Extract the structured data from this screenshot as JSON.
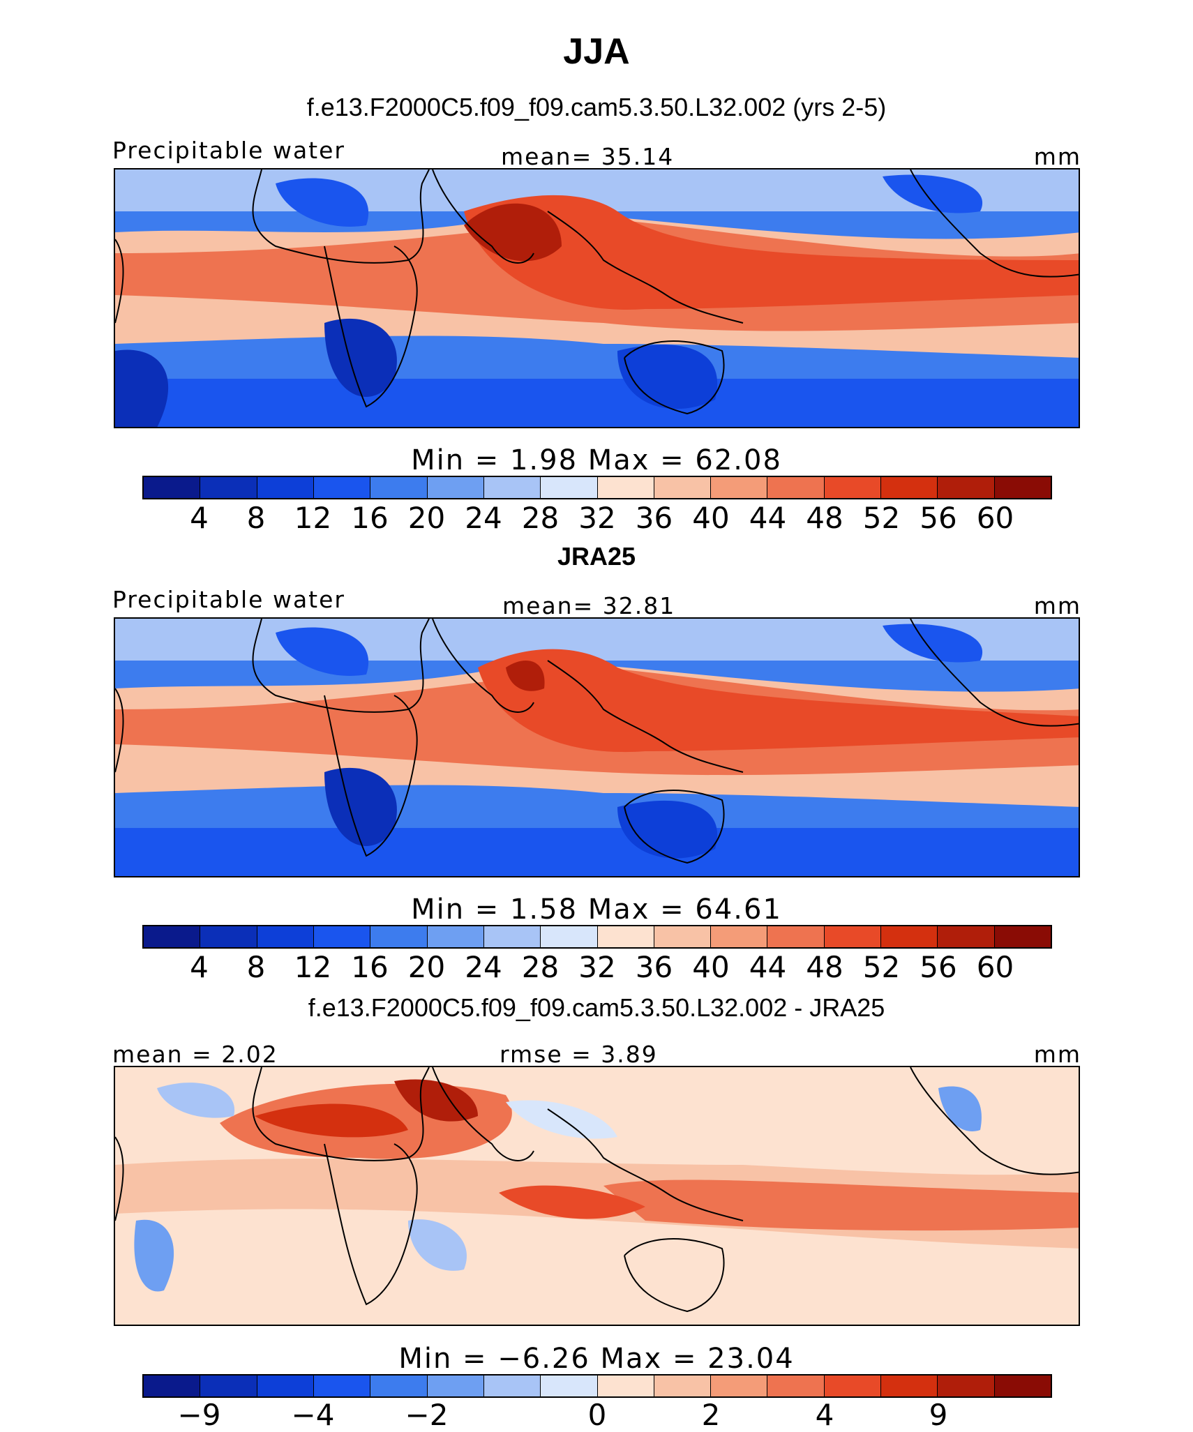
{
  "figure": {
    "title": "JJA"
  },
  "panels": [
    {
      "id": "model",
      "subtitle": "f.e13.F2000C5.f09_f09.cam5.3.50.L32.002 (yrs 2-5)",
      "left_label": "Precipitable water",
      "center_label": "mean=   35.14",
      "units": "mm",
      "minmax": "Min =    1.98 Max =   62.08",
      "colorbar_ticks": [
        "4",
        "8",
        "12",
        "16",
        "20",
        "24",
        "28",
        "32",
        "36",
        "40",
        "44",
        "48",
        "52",
        "56",
        "60"
      ]
    },
    {
      "id": "obs",
      "subtitle": "JRA25",
      "left_label": "Precipitable water",
      "center_label": "mean=   32.81",
      "units": "mm",
      "minmax": "Min =    1.58 Max =   64.61",
      "colorbar_ticks": [
        "4",
        "8",
        "12",
        "16",
        "20",
        "24",
        "28",
        "32",
        "36",
        "40",
        "44",
        "48",
        "52",
        "56",
        "60"
      ]
    },
    {
      "id": "diff",
      "subtitle": "f.e13.F2000C5.f09_f09.cam5.3.50.L32.002 - JRA25",
      "left_label": "mean =   2.02",
      "center_label": "rmse =    3.89",
      "units": "mm",
      "minmax": "Min =  −6.26 Max =   23.04",
      "colorbar_ticks": [
        "−9",
        "−4",
        "−2",
        "0",
        "2",
        "4",
        "9"
      ]
    }
  ],
  "palette": [
    "#0a1a8c",
    "#0b2fb8",
    "#0d3fd8",
    "#1a55ee",
    "#3d7cee",
    "#6e9ff2",
    "#a8c4f6",
    "#d8e6fb",
    "#fde2d0",
    "#f8c2a6",
    "#f49c78",
    "#ee7350",
    "#e84a28",
    "#d4300f",
    "#b01e0a",
    "#8a0c05"
  ]
}
